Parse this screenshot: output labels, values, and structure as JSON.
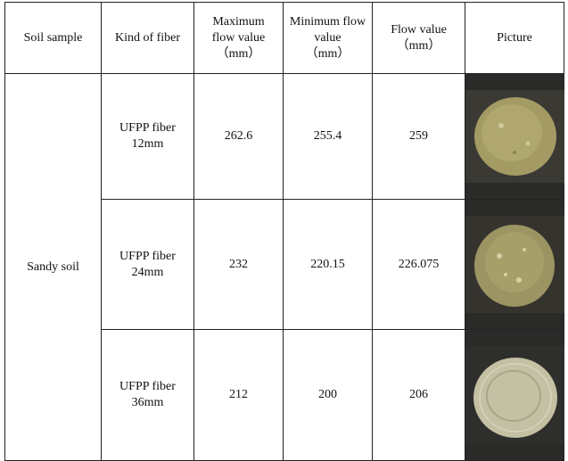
{
  "table": {
    "headers": [
      "Soil sample",
      "Kind of fiber",
      "Maximum\nflow value\n（mm）",
      "Minimum flow\nvalue\n（mm）",
      "Flow value\n（mm）",
      "Picture"
    ],
    "soil": "Sandy soil",
    "rows": [
      [
        "UFPP fiber\n12mm",
        262.6,
        255.4,
        259
      ],
      [
        "UFPP fiber\n24mm",
        232,
        220.15,
        226.075
      ],
      [
        "UFPP fiber\n36mm",
        212,
        200,
        206
      ]
    ]
  }
}
